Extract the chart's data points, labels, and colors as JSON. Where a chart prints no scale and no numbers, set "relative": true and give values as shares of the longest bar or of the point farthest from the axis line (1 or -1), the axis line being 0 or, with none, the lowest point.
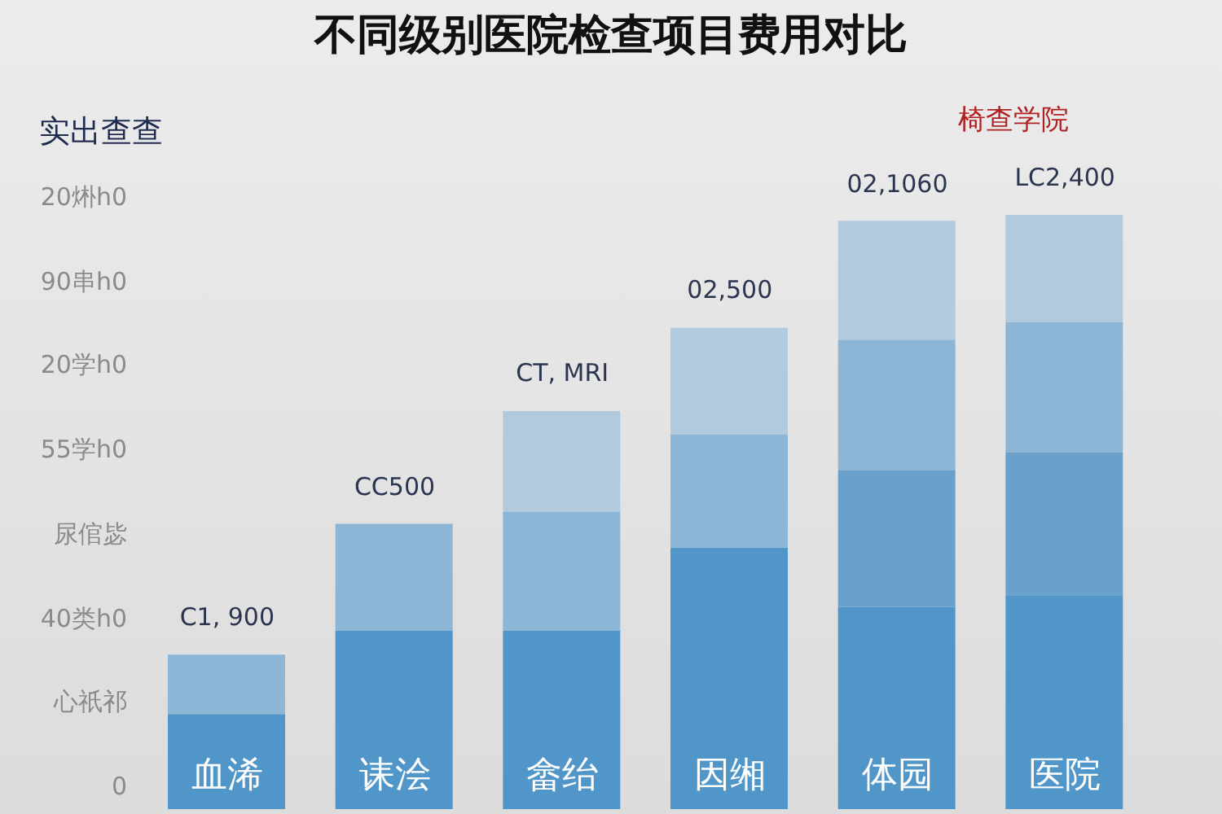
{
  "chart_data": {
    "type": "bar",
    "title": "不同级别医院检查项目费用对比",
    "ylabel": "实出查查",
    "stacked": true,
    "relative": true,
    "categories": [
      "血浠",
      "诔浍",
      "畲绐",
      "因缃",
      "体园",
      "医院"
    ],
    "series": [
      {
        "colors": [
          "#5096c9",
          "#5096c9",
          "#5096c9",
          "#5096c9",
          "#5096c9",
          "#5096c9"
        ],
        "values": [
          0.16,
          0.3,
          0.3,
          0.44,
          0.34,
          0.36
        ]
      },
      {
        "colors": [
          "#8db6d6",
          "#8db6d6",
          "#8db6d6",
          "#8db6d6",
          "#6aa1cc",
          "#6aa1cc"
        ],
        "values": [
          0.1,
          0.18,
          0.2,
          0.19,
          0.23,
          0.24
        ]
      },
      {
        "colors": [
          "#b2cade",
          "#b2cade",
          "#b2cade",
          "#b2cade",
          "#8db6d6",
          "#8db6d6"
        ],
        "values": [
          null,
          null,
          0.17,
          0.18,
          0.22,
          0.22
        ]
      },
      {
        "colors": [
          "#b2cade",
          "#b2cade",
          "#b2cade",
          "#b2cade",
          "#b2cade",
          "#b2cade"
        ],
        "values": [
          null,
          null,
          null,
          null,
          0.2,
          0.18
        ]
      }
    ],
    "annotations": [
      "椅查学院",
      "20烞h0",
      "90串h0",
      "20学h0",
      "55学h0",
      "尿倌毖",
      "40类h0",
      "心祇祁",
      "0",
      {
        "text": "C1, 900",
        "x": "血浠",
        "y": 0.26
      },
      {
        "text": "CC500",
        "x": "诔浍",
        "y": 0.48
      },
      {
        "text": "CT, MRI",
        "x": "畲绐",
        "y": 0.67
      },
      {
        "text": "02,500",
        "x": "因缃",
        "y": 0.81
      },
      {
        "text": "02,1060",
        "x": "体园",
        "y": 0.99
      },
      {
        "text": "LC2,400",
        "x": "医院",
        "y": 1.0
      }
    ]
  }
}
